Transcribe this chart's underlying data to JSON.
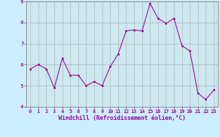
{
  "x": [
    0,
    1,
    2,
    3,
    4,
    5,
    6,
    7,
    8,
    9,
    10,
    11,
    12,
    13,
    14,
    15,
    16,
    17,
    18,
    19,
    20,
    21,
    22,
    23
  ],
  "y": [
    5.8,
    6.0,
    5.8,
    4.9,
    6.3,
    5.5,
    5.5,
    5.0,
    5.2,
    5.0,
    5.9,
    6.5,
    7.6,
    7.65,
    7.6,
    8.9,
    8.2,
    7.95,
    8.2,
    6.9,
    6.65,
    4.65,
    4.35,
    4.8
  ],
  "line_color": "#990099",
  "marker_color": "#990099",
  "tick_color": "#990099",
  "bg_color": "#cceeff",
  "grid_color": "#aaaaaa",
  "xlabel": "Windchill (Refroidissement éolien,°C)",
  "xlabel_color": "#990099",
  "bg_axes": "#cce8f0",
  "ylim": [
    4,
    9
  ],
  "xlim": [
    -0.5,
    23.5
  ],
  "yticks": [
    4,
    5,
    6,
    7,
    8,
    9
  ],
  "xticks": [
    0,
    1,
    2,
    3,
    4,
    5,
    6,
    7,
    8,
    9,
    10,
    11,
    12,
    13,
    14,
    15,
    16,
    17,
    18,
    19,
    20,
    21,
    22,
    23
  ],
  "tick_fontsize": 5.0,
  "xlabel_fontsize": 6.0
}
